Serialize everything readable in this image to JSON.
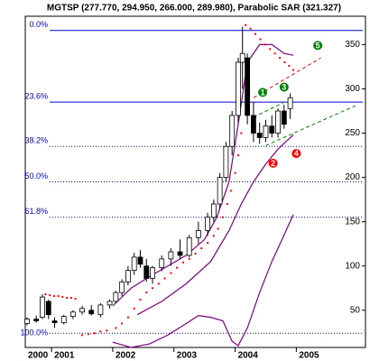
{
  "chart_data": {
    "type": "candlestick",
    "title": "MGTSP (277.770, 294.950, 266.000, 289.980), Parabolic SAR (321.327)",
    "xlim": [
      2000.57,
      2006.13
    ],
    "xticks": [
      2000,
      2001,
      2002,
      2003,
      2004,
      2005
    ],
    "ylim": [
      8,
      382
    ],
    "yticks": [
      50,
      100,
      150,
      200,
      250,
      300,
      350
    ],
    "candles": {
      "color_up": "#ffffff",
      "color_down": "#000000",
      "x": [
        2000.6,
        2000.75,
        2000.85,
        2000.95,
        2001.05,
        2001.2,
        2001.35,
        2001.5,
        2001.65,
        2001.8,
        2001.95,
        2002.05,
        2002.15,
        2002.25,
        2002.35,
        2002.45,
        2002.55,
        2002.65,
        2002.8,
        2002.95,
        2003.1,
        2003.25,
        2003.4,
        2003.55,
        2003.65,
        2003.75,
        2003.85,
        2003.95,
        2004.05,
        2004.12,
        2004.2,
        2004.3,
        2004.4,
        2004.5,
        2004.6,
        2004.7,
        2004.8,
        2004.9
      ],
      "open": [
        35,
        40,
        42,
        60,
        38,
        36,
        43,
        48,
        50,
        45,
        56,
        60,
        70,
        82,
        95,
        110,
        100,
        86,
        98,
        108,
        116,
        112,
        132,
        140,
        155,
        170,
        200,
        235,
        270,
        330,
        335,
        270,
        250,
        245,
        258,
        250,
        275,
        277.77
      ],
      "high": [
        42,
        44,
        68,
        62,
        42,
        45,
        50,
        55,
        56,
        58,
        62,
        72,
        85,
        100,
        115,
        118,
        108,
        100,
        112,
        120,
        130,
        135,
        150,
        160,
        175,
        205,
        240,
        275,
        335,
        370,
        340,
        285,
        262,
        265,
        270,
        278,
        282,
        294.95
      ],
      "low": [
        33,
        36,
        40,
        40,
        30,
        34,
        40,
        45,
        44,
        42,
        52,
        58,
        66,
        78,
        90,
        98,
        82,
        80,
        94,
        100,
        108,
        110,
        125,
        134,
        150,
        165,
        195,
        225,
        262,
        300,
        260,
        240,
        238,
        240,
        245,
        245,
        255,
        266
      ],
      "close": [
        40,
        38,
        65,
        45,
        36,
        43,
        48,
        52,
        46,
        56,
        60,
        70,
        82,
        95,
        110,
        102,
        86,
        98,
        108,
        116,
        112,
        132,
        140,
        155,
        170,
        200,
        235,
        270,
        330,
        340,
        270,
        250,
        245,
        258,
        250,
        275,
        260,
        289.98
      ]
    },
    "sar": {
      "color": "#ff0000",
      "x": [
        2000.9,
        2000.97,
        2001.04,
        2001.11,
        2001.18,
        2001.25,
        2001.32,
        2001.39,
        2001.5,
        2001.6,
        2001.7,
        2001.8,
        2001.9,
        2002.05,
        2002.15,
        2002.25,
        2002.35,
        2002.45,
        2002.55,
        2002.65,
        2002.75,
        2002.85,
        2002.95,
        2003.05,
        2003.15,
        2003.25,
        2003.35,
        2003.45,
        2003.55,
        2003.65,
        2003.72,
        2003.8,
        2003.87,
        2003.93,
        2004.0,
        2004.05,
        2004.1,
        2004.17,
        2004.25,
        2004.33,
        2004.41,
        2004.49,
        2004.57,
        2004.65,
        2004.73,
        2004.81,
        2004.88,
        2004.95
      ],
      "values": [
        68,
        67,
        66,
        66,
        65,
        64,
        64,
        63,
        22,
        23,
        24,
        26,
        27,
        30,
        35,
        42,
        52,
        62,
        70,
        75,
        80,
        86,
        92,
        98,
        104,
        108,
        114,
        120,
        126,
        134,
        142,
        155,
        170,
        185,
        205,
        225,
        250,
        372,
        368,
        362,
        356,
        350,
        345,
        340,
        335,
        330,
        326,
        321.327
      ]
    },
    "lines": [
      {
        "color": "#800080",
        "x": [
          2002.0,
          2002.3,
          2002.6,
          2002.9,
          2003.2,
          2003.5,
          2003.7,
          2003.9,
          2004.05,
          2004.2,
          2004.4,
          2004.6,
          2004.8,
          2004.95
        ],
        "values": [
          55,
          75,
          88,
          100,
          112,
          130,
          155,
          195,
          260,
          330,
          350,
          350,
          340,
          338
        ]
      },
      {
        "color": "#800080",
        "x": [
          2002.4,
          2002.8,
          2003.2,
          2003.6,
          2003.9,
          2004.1,
          2004.3,
          2004.5,
          2004.7,
          2004.95
        ],
        "values": [
          45,
          60,
          80,
          105,
          140,
          170,
          195,
          215,
          232,
          248
        ]
      },
      {
        "color": "#800080",
        "x": [
          2002.0,
          2002.3,
          2002.6,
          2002.9,
          2003.2,
          2003.4,
          2003.6,
          2003.8,
          2003.95,
          2004.05,
          2004.2,
          2004.4,
          2004.6,
          2004.8,
          2004.95
        ],
        "values": [
          14,
          8,
          12,
          22,
          35,
          44,
          42,
          38,
          15,
          10,
          30,
          70,
          105,
          135,
          158
        ]
      }
    ],
    "trendlines": [
      {
        "color": "#ff0000",
        "x": [
          2004.3,
          2005.4
        ],
        "values": [
          290,
          335
        ]
      },
      {
        "color": "#008000",
        "x": [
          2004.3,
          2004.95
        ],
        "values": [
          268,
          290
        ]
      },
      {
        "color": "#008000",
        "x": [
          2004.5,
          2006.0
        ],
        "values": [
          236,
          282
        ]
      }
    ],
    "fib_levels": [
      {
        "label": "0.0%",
        "value": 366
      },
      {
        "label": "23.6%",
        "value": 285
      },
      {
        "label": "38.2%",
        "value": 235
      },
      {
        "label": "50.0%",
        "value": 195
      },
      {
        "label": "61.8%",
        "value": 155
      },
      {
        "label": "100.0%",
        "value": 24
      }
    ],
    "fib_color": "#0000cc",
    "annotations": [
      {
        "text": "1",
        "x": 2004.45,
        "y": 296,
        "color": "#008000"
      },
      {
        "text": "2",
        "x": 2004.62,
        "y": 216,
        "color": "#ff0000"
      },
      {
        "text": "3",
        "x": 2004.8,
        "y": 302,
        "color": "#008000"
      },
      {
        "text": "4",
        "x": 2005.0,
        "y": 227,
        "color": "#ff0000"
      },
      {
        "text": "5",
        "x": 2005.35,
        "y": 349,
        "color": "#008000"
      }
    ]
  }
}
